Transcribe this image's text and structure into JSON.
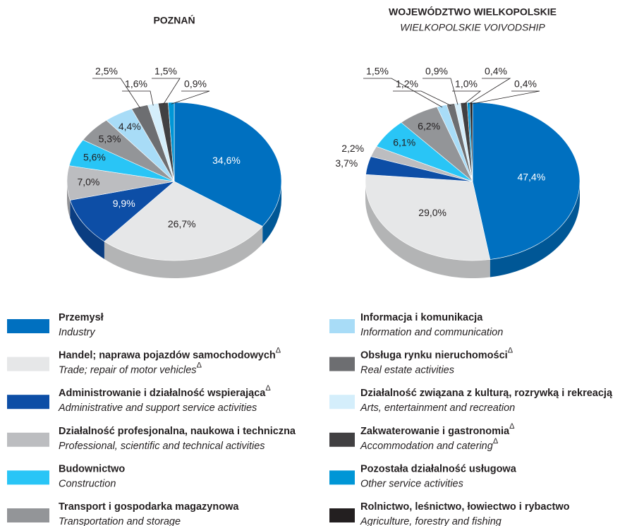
{
  "legend": [
    {
      "name": "Przemysł",
      "name_en": "Industry",
      "color": "#0070c0"
    },
    {
      "name": "Handel; naprawa pojazdów samochodowych",
      "name_mark": "Δ",
      "name_en": "Trade; repair of motor vehicles",
      "name_en_mark": "Δ",
      "color": "#e6e7e8"
    },
    {
      "name": "Administrowanie i działalność wspierająca",
      "name_mark": "Δ",
      "name_en": "Administrative and support service activities",
      "color": "#0d4ea6"
    },
    {
      "name": "Działalność profesjonalna, naukowa i techniczna",
      "name_en": "Professional, scientific and technical activities",
      "color": "#bcbdc0"
    },
    {
      "name": "Budownictwo",
      "name_en": "Construction",
      "color": "#29c5f6"
    },
    {
      "name": "Transport i gospodarka magazynowa",
      "name_en": "Transportation and storage",
      "color": "#939598"
    },
    {
      "name": "Informacja i komunikacja",
      "name_en": "Information and communication",
      "color": "#a8dcf7"
    },
    {
      "name": "Obsługa rynku nieruchomości",
      "name_mark": "Δ",
      "name_en": "Real estate activities",
      "color": "#6d6e71"
    },
    {
      "name": "Działalność związana z kulturą, rozrywką i rekreacją",
      "name_en": "Arts, entertainment and recreation",
      "color": "#d4eefb"
    },
    {
      "name": "Zakwaterowanie i gastronomia",
      "name_mark": "Δ",
      "name_en": "Accommodation and catering",
      "name_en_mark": "Δ",
      "color": "#414042"
    },
    {
      "name": "Pozostała działalność usługowa",
      "name_en": "Other service activities",
      "color": "#0096d6"
    },
    {
      "name": "Rolnictwo, leśnictwo, łowiectwo i rybactwo",
      "name_en": "Agriculture, forestry and fishing",
      "color": "#231f20"
    }
  ],
  "chart_data": [
    {
      "type": "pie",
      "title": "POZNAŃ",
      "values": [
        34.6,
        26.7,
        9.9,
        7.0,
        5.6,
        5.3,
        4.4,
        2.5,
        1.6,
        1.5,
        0.9,
        null
      ],
      "value_labels": [
        "34,6%",
        "26,7%",
        "9,9%",
        "7,0%",
        "5,6%",
        "5,3%",
        "4,4%",
        "2,5%",
        "1,6%",
        "1,5%",
        "0,9%",
        null
      ]
    },
    {
      "type": "pie",
      "title": "WOJEWÓDZTWO WIELKOPOLSKIE",
      "subtitle": "WIELKOPOLSKIE VOIVODSHIP",
      "values": [
        47.4,
        29.0,
        3.7,
        2.2,
        6.1,
        6.2,
        1.5,
        1.2,
        0.9,
        1.0,
        0.4,
        0.4
      ],
      "value_labels": [
        "47,4%",
        "29,0%",
        "3,7%",
        "2,2%",
        "6,1%",
        "6,2%",
        "1,5%",
        "1,2%",
        "0,9%",
        "1,0%",
        "0,4%",
        "0,4%"
      ]
    }
  ]
}
